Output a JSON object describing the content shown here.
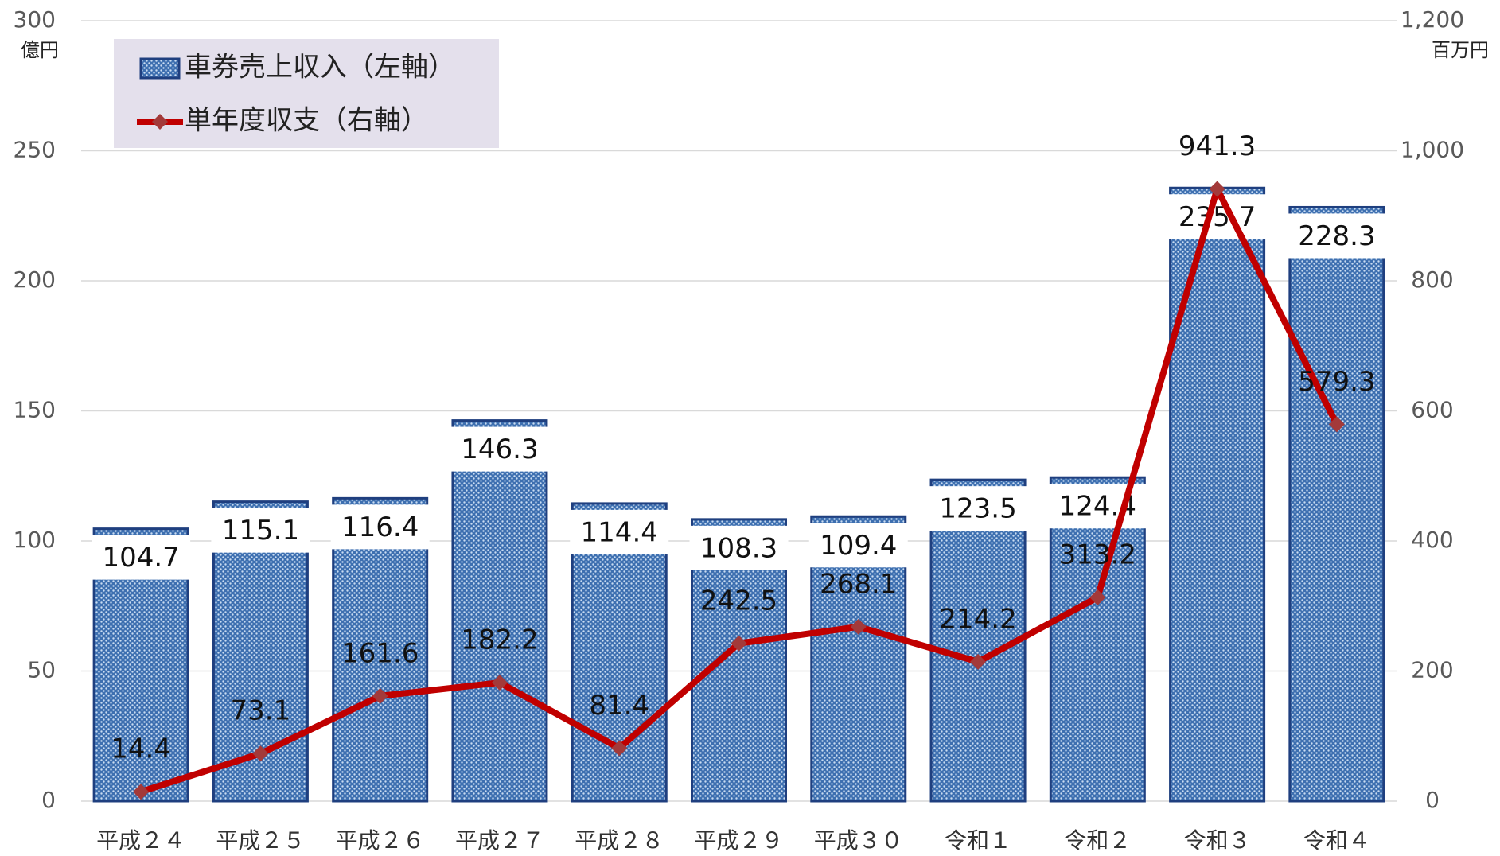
{
  "chart_data": {
    "type": "combo",
    "y_unit": "億円",
    "y2_unit": "百万円",
    "categories": [
      "平成２４",
      "平成２５",
      "平成２６",
      "平成２７",
      "平成２８",
      "平成２９",
      "平成３０",
      "令和１",
      "令和２",
      "令和３",
      "令和４"
    ],
    "series": [
      {
        "name": "車券売上収入（左軸）",
        "color": "#1f3f7f",
        "axis": "y",
        "values": [
          104.7,
          115.1,
          116.4,
          146.3,
          114.4,
          108.3,
          109.4,
          123.5,
          124.4,
          235.7,
          228.3
        ]
      },
      {
        "name": "単年度収支（右軸）",
        "color": "#c00000",
        "axis": "y2",
        "values": [
          14.4,
          73.1,
          161.6,
          182.2,
          81.4,
          242.5,
          268.1,
          214.2,
          313.2,
          941.3,
          579.3
        ]
      }
    ],
    "ylim": [
      0,
      300
    ],
    "yticks": [
      0,
      50,
      100,
      150,
      200,
      250,
      300
    ],
    "y2lim": [
      0,
      1200
    ],
    "y2ticks": [
      0,
      200,
      400,
      600,
      800,
      {
        "value": 1000,
        "label": "1,000"
      },
      {
        "value": 1200,
        "label": "1,200"
      }
    ],
    "grid": true,
    "legend": "top-left"
  }
}
